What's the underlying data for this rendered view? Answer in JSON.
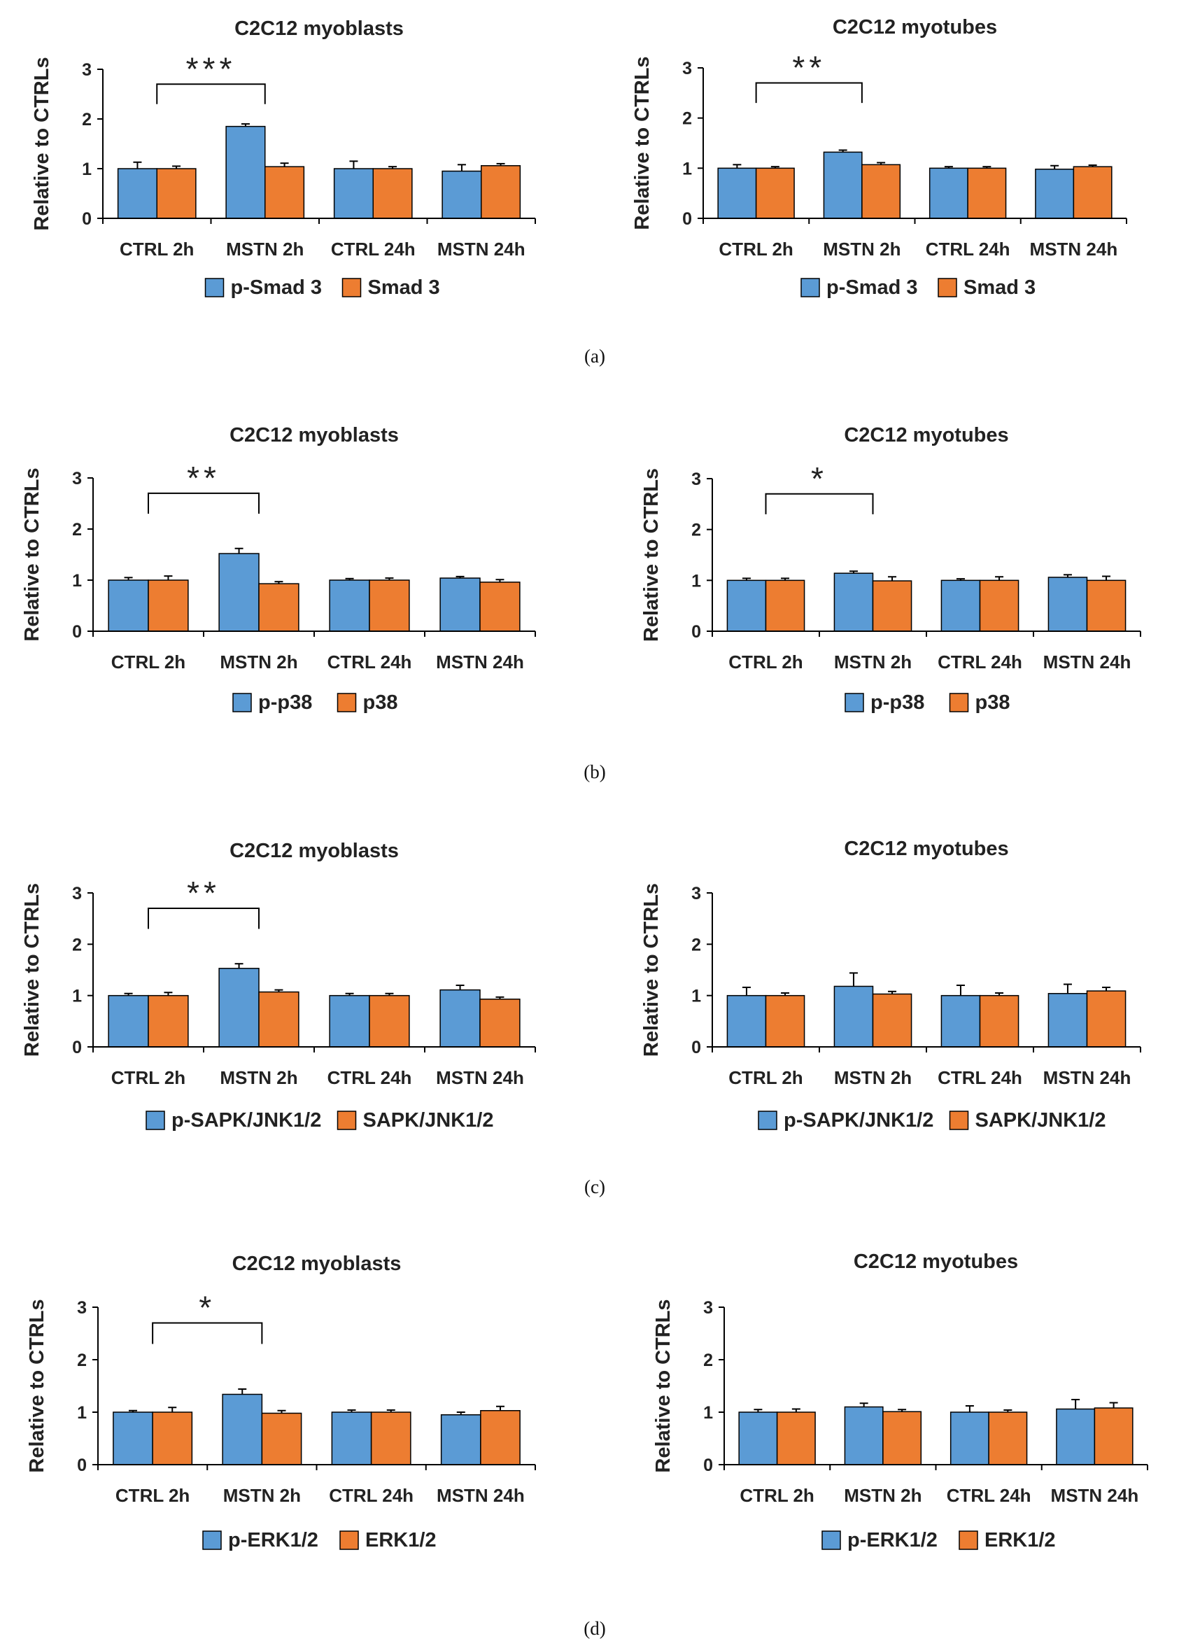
{
  "figure": {
    "colors": {
      "phospho": "#5b9bd5",
      "total": "#ed7d31",
      "bar_edge": "#000000",
      "axis": "#000000",
      "text": "#222222"
    },
    "panels": [
      {
        "label": "(a)",
        "legend": [
          "p-Smad 3",
          "Smad 3"
        ]
      },
      {
        "label": "(b)",
        "legend": [
          "p-p38",
          "p38"
        ]
      },
      {
        "label": "(c)",
        "legend": [
          "p-SAPK/JNK1/2",
          "SAPK/JNK1/2"
        ]
      },
      {
        "label": "(d)",
        "legend": [
          "p-ERK1/2",
          "ERK1/2"
        ]
      }
    ]
  },
  "chart_data": [
    {
      "type": "bar",
      "panel": "(a)",
      "title": "C2C12 myoblasts",
      "xlabel": "",
      "ylabel": "Relative to CTRLs",
      "ylim": [
        0,
        3
      ],
      "yticks": [
        0,
        1,
        2,
        3
      ],
      "categories": [
        "CTRL 2h",
        "MSTN 2h",
        "CTRL 24h",
        "MSTN 24h"
      ],
      "series": [
        {
          "name": "p-Smad 3",
          "values": [
            1.0,
            1.85,
            1.0,
            0.95
          ],
          "errors": [
            0.13,
            0.05,
            0.15,
            0.13
          ]
        },
        {
          "name": "Smad 3",
          "values": [
            1.0,
            1.04,
            1.0,
            1.06
          ],
          "errors": [
            0.05,
            0.07,
            0.04,
            0.04
          ]
        }
      ],
      "significance": {
        "from": "CTRL 2h",
        "to": "MSTN 2h",
        "label": "***"
      }
    },
    {
      "type": "bar",
      "panel": "(a)",
      "title": "C2C12 myotubes",
      "xlabel": "",
      "ylabel": "Relative to CTRLs",
      "ylim": [
        0,
        3
      ],
      "yticks": [
        0,
        1,
        2,
        3
      ],
      "categories": [
        "CTRL 2h",
        "MSTN 2h",
        "CTRL 24h",
        "MSTN 24h"
      ],
      "series": [
        {
          "name": "p-Smad 3",
          "values": [
            1.0,
            1.32,
            1.0,
            0.98
          ],
          "errors": [
            0.07,
            0.04,
            0.03,
            0.07
          ]
        },
        {
          "name": "Smad 3",
          "values": [
            1.0,
            1.07,
            1.0,
            1.03
          ],
          "errors": [
            0.03,
            0.04,
            0.03,
            0.03
          ]
        }
      ],
      "significance": {
        "from": "CTRL 2h",
        "to": "MSTN 2h",
        "label": "**"
      }
    },
    {
      "type": "bar",
      "panel": "(b)",
      "title": "C2C12 myoblasts",
      "xlabel": "",
      "ylabel": "Relative to CTRLs",
      "ylim": [
        0,
        3
      ],
      "yticks": [
        0,
        1,
        2,
        3
      ],
      "categories": [
        "CTRL 2h",
        "MSTN 2h",
        "CTRL 24h",
        "MSTN 24h"
      ],
      "series": [
        {
          "name": "p-p38",
          "values": [
            1.0,
            1.52,
            1.0,
            1.04
          ],
          "errors": [
            0.05,
            0.1,
            0.03,
            0.03
          ]
        },
        {
          "name": "p38",
          "values": [
            1.0,
            0.93,
            1.0,
            0.96
          ],
          "errors": [
            0.08,
            0.04,
            0.04,
            0.05
          ]
        }
      ],
      "significance": {
        "from": "CTRL 2h",
        "to": "MSTN 2h",
        "label": "**"
      }
    },
    {
      "type": "bar",
      "panel": "(b)",
      "title": "C2C12 myotubes",
      "xlabel": "",
      "ylabel": "Relative to  CTRLs",
      "ylim": [
        0,
        3
      ],
      "yticks": [
        0,
        1,
        2,
        3
      ],
      "categories": [
        "CTRL 2h",
        "MSTN 2h",
        "CTRL 24h",
        "MSTN 24h"
      ],
      "series": [
        {
          "name": "p-p38",
          "values": [
            1.0,
            1.14,
            1.0,
            1.06
          ],
          "errors": [
            0.04,
            0.04,
            0.03,
            0.05
          ]
        },
        {
          "name": "p38",
          "values": [
            1.0,
            0.99,
            1.0,
            1.0
          ],
          "errors": [
            0.04,
            0.08,
            0.07,
            0.08
          ]
        }
      ],
      "significance": {
        "from": "CTRL 2h",
        "to": "MSTN 2h",
        "label": "*"
      }
    },
    {
      "type": "bar",
      "panel": "(c)",
      "title": "C2C12 myoblasts",
      "xlabel": "",
      "ylabel": "Relative to CTRLs",
      "ylim": [
        0,
        3
      ],
      "yticks": [
        0,
        1,
        2,
        3
      ],
      "categories": [
        "CTRL 2h",
        "MSTN 2h",
        "CTRL 24h",
        "MSTN 24h"
      ],
      "series": [
        {
          "name": "p-SAPK/JNK1/2",
          "values": [
            1.0,
            1.53,
            1.0,
            1.11
          ],
          "errors": [
            0.04,
            0.09,
            0.04,
            0.09
          ]
        },
        {
          "name": "SAPK/JNK1/2",
          "values": [
            1.0,
            1.07,
            1.0,
            0.93
          ],
          "errors": [
            0.06,
            0.04,
            0.04,
            0.04
          ]
        }
      ],
      "significance": {
        "from": "CTRL 2h",
        "to": "MSTN 2h",
        "label": "**"
      }
    },
    {
      "type": "bar",
      "panel": "(c)",
      "title": "C2C12 myotubes",
      "xlabel": "",
      "ylabel": "Relative to CTRLs",
      "ylim": [
        0,
        3
      ],
      "yticks": [
        0,
        1,
        2,
        3
      ],
      "categories": [
        "CTRL 2h",
        "MSTN 2h",
        "CTRL 24h",
        "MSTN 24h"
      ],
      "series": [
        {
          "name": "p-SAPK/JNK1/2",
          "values": [
            1.0,
            1.18,
            1.0,
            1.04
          ],
          "errors": [
            0.16,
            0.26,
            0.2,
            0.18
          ]
        },
        {
          "name": "SAPK/JNK1/2",
          "values": [
            1.0,
            1.03,
            1.0,
            1.09
          ],
          "errors": [
            0.05,
            0.05,
            0.05,
            0.07
          ]
        }
      ],
      "significance": null
    },
    {
      "type": "bar",
      "panel": "(d)",
      "title": "C2C12 myoblasts",
      "xlabel": "",
      "ylabel": "Relative to CTRLs",
      "ylim": [
        0,
        3
      ],
      "yticks": [
        0,
        1,
        2,
        3
      ],
      "categories": [
        "CTRL 2h",
        "MSTN 2h",
        "CTRL 24h",
        "MSTN 24h"
      ],
      "series": [
        {
          "name": "p-ERK1/2",
          "values": [
            1.0,
            1.34,
            1.0,
            0.95
          ],
          "errors": [
            0.03,
            0.1,
            0.04,
            0.05
          ]
        },
        {
          "name": "ERK1/2",
          "values": [
            1.0,
            0.98,
            1.0,
            1.03
          ],
          "errors": [
            0.09,
            0.05,
            0.04,
            0.08
          ]
        }
      ],
      "significance": {
        "from": "CTRL 2h",
        "to": "MSTN 2h",
        "label": "*"
      }
    },
    {
      "type": "bar",
      "panel": "(d)",
      "title": "C2C12 myotubes",
      "xlabel": "",
      "ylabel": "Relative to CTRLs",
      "ylim": [
        0,
        3
      ],
      "yticks": [
        0,
        1,
        2,
        3
      ],
      "categories": [
        "CTRL 2h",
        "MSTN 2h",
        "CTRL 24h",
        "MSTN 24h"
      ],
      "series": [
        {
          "name": "p-ERK1/2",
          "values": [
            1.0,
            1.1,
            1.0,
            1.06
          ],
          "errors": [
            0.05,
            0.07,
            0.12,
            0.18
          ]
        },
        {
          "name": "ERK1/2",
          "values": [
            1.0,
            1.01,
            1.0,
            1.08
          ],
          "errors": [
            0.06,
            0.04,
            0.04,
            0.1
          ]
        }
      ],
      "significance": null
    }
  ]
}
